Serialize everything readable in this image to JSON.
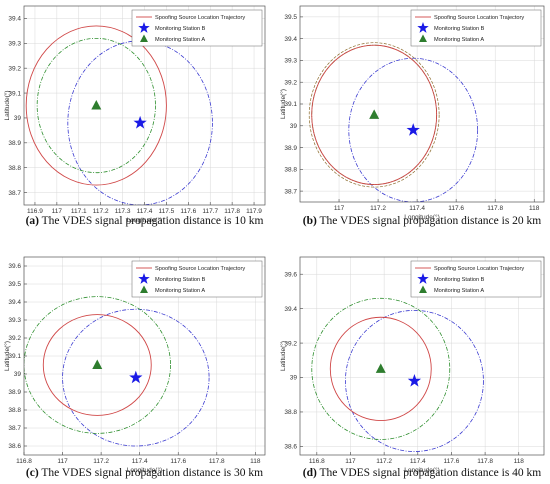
{
  "legend": {
    "trajectory": "Spoofing Source Location Trajectory",
    "station_b": "Monitoring Station B",
    "station_a": "Monitoring Station A"
  },
  "axis_labels": {
    "x": "Longitude(°)",
    "y": "Latitude(°)"
  },
  "colors": {
    "trajectory": "#d04848",
    "station_b": "#1a1ae6",
    "station_a": "#2e7d2e",
    "circle_b": "#3a3ad0",
    "circle_a": "#2f8f2f",
    "grid": "#d8d8d8"
  },
  "chart_data": [
    {
      "type": "scatter",
      "caption_prefix": "(a)",
      "caption_text": " The VDES signal propagation distance is 10 km",
      "xlabel": "Longitude(°)",
      "ylabel": "Latitude(°)",
      "xlim": [
        116.85,
        117.95
      ],
      "ylim": [
        38.65,
        39.45
      ],
      "xticks": [
        "116.9",
        "117",
        "117.1",
        "117.2",
        "117.3",
        "117.4",
        "117.5",
        "117.6",
        "117.7",
        "117.8",
        "117.9"
      ],
      "yticks": [
        "38.7",
        "38.8",
        "38.9",
        "39",
        "39.1",
        "39.2",
        "39.3",
        "39.4"
      ],
      "station_b": [
        117.38,
        38.98
      ],
      "station_a": [
        117.18,
        39.05
      ],
      "circle_b": {
        "center": [
          117.38,
          38.98
        ],
        "r": 0.33
      },
      "circle_a": {
        "center": [
          117.18,
          39.05
        ],
        "r": 0.27
      },
      "trajectory": {
        "center": [
          117.18,
          39.05
        ],
        "r": 0.32
      },
      "grid": true,
      "legend": "top-right"
    },
    {
      "type": "scatter",
      "caption_prefix": "(b)",
      "caption_text": " The VDES signal propagation distance is 20 km",
      "xlabel": "Longitude(°)",
      "ylabel": "Latitude(°)",
      "xlim": [
        116.8,
        118.05
      ],
      "ylim": [
        38.65,
        39.55
      ],
      "xticks": [
        "117",
        "117.2",
        "117.4",
        "117.6",
        "117.8",
        "118"
      ],
      "yticks": [
        "38.7",
        "38.8",
        "38.9",
        "39",
        "39.1",
        "39.2",
        "39.3",
        "39.4",
        "39.5"
      ],
      "station_b": [
        117.38,
        38.98
      ],
      "station_a": [
        117.18,
        39.05
      ],
      "circle_b": {
        "center": [
          117.38,
          38.98
        ],
        "r": 0.33
      },
      "circle_a": {
        "center": [
          117.18,
          39.05
        ],
        "r": 0.32
      },
      "trajectory": {
        "center": [
          117.18,
          39.05
        ],
        "r": 0.32
      },
      "grid": true,
      "legend": "top-right"
    },
    {
      "type": "scatter",
      "caption_prefix": "(c)",
      "caption_text": " The VDES signal propagation distance is 30 km",
      "xlabel": "Longitude(°)",
      "ylabel": "Latitude(°)",
      "xlim": [
        116.8,
        118.05
      ],
      "ylim": [
        38.55,
        39.65
      ],
      "xticks": [
        "116.8",
        "117",
        "117.2",
        "117.4",
        "117.6",
        "117.8",
        "118"
      ],
      "yticks": [
        "38.6",
        "38.7",
        "38.8",
        "38.9",
        "39",
        "39.1",
        "39.2",
        "39.3",
        "39.4",
        "39.5",
        "39.6"
      ],
      "station_b": [
        117.38,
        38.98
      ],
      "station_a": [
        117.18,
        39.05
      ],
      "circle_b": {
        "center": [
          117.38,
          38.98
        ],
        "r": 0.38
      },
      "circle_a": {
        "center": [
          117.18,
          39.05
        ],
        "r": 0.38
      },
      "trajectory": {
        "center": [
          117.18,
          39.05
        ],
        "r": 0.28
      },
      "grid": true,
      "legend": "top-right"
    },
    {
      "type": "scatter",
      "caption_prefix": "(d)",
      "caption_text": " The VDES signal propagation distance is 40 km",
      "xlabel": "Longitude(°)",
      "ylabel": "Latitude(°)",
      "xlim": [
        116.7,
        118.15
      ],
      "ylim": [
        38.55,
        39.7
      ],
      "xticks": [
        "116.8",
        "117",
        "117.2",
        "117.4",
        "117.6",
        "117.8",
        "118"
      ],
      "yticks": [
        "38.6",
        "38.8",
        "39",
        "39.2",
        "39.4",
        "39.6"
      ],
      "station_b": [
        117.38,
        38.98
      ],
      "station_a": [
        117.18,
        39.05
      ],
      "circle_b": {
        "center": [
          117.38,
          38.98
        ],
        "r": 0.41
      },
      "circle_a": {
        "center": [
          117.18,
          39.05
        ],
        "r": 0.41
      },
      "trajectory": {
        "center": [
          117.18,
          39.05
        ],
        "r": 0.3
      },
      "grid": true,
      "legend": "top-right"
    }
  ]
}
